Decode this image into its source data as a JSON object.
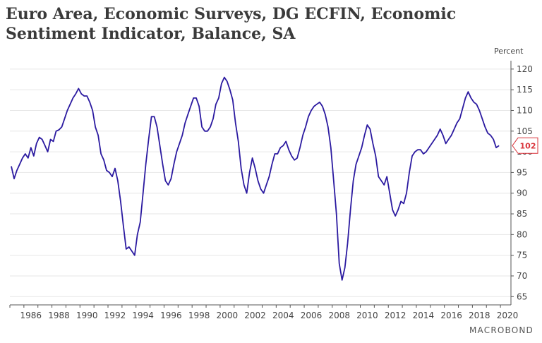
{
  "title_line1": "Euro Area, Economic Surveys, DG ECFIN, Economic",
  "title_line2": "Sentiment Indicator, Balance, SA",
  "brand": "MACROBOND",
  "chart_data": {
    "type": "line",
    "title": "Euro Area, Economic Surveys, DG ECFIN, Economic Sentiment Indicator, Balance, SA",
    "ylabel": "Percent",
    "xlabel": "",
    "xlim": [
      1985.0,
      2020.75
    ],
    "ylim": [
      63,
      121
    ],
    "grid": true,
    "y_axis_side": "right",
    "x_ticks": [
      1986,
      1988,
      1990,
      1992,
      1994,
      1996,
      1998,
      2000,
      2002,
      2004,
      2006,
      2008,
      2010,
      2012,
      2014,
      2016,
      2018,
      2020
    ],
    "y_ticks": [
      65,
      70,
      75,
      80,
      85,
      90,
      95,
      100,
      105,
      110,
      115,
      120
    ],
    "last_value_label": "102",
    "colors": {
      "line": "#2b1aa0",
      "last_value": "#d9343b",
      "grid": "#e6e6e6",
      "axis": "#555555"
    },
    "series": [
      {
        "x": [
          1985.1,
          1985.3,
          1985.5,
          1985.7,
          1985.9,
          1986.1,
          1986.3,
          1986.5,
          1986.7,
          1986.9,
          1987.1,
          1987.3,
          1987.5,
          1987.7,
          1987.9,
          1988.1,
          1988.3,
          1988.5,
          1988.7,
          1988.9,
          1989.1,
          1989.3,
          1989.5,
          1989.7,
          1989.9,
          1990.1,
          1990.3,
          1990.5,
          1990.7,
          1990.9,
          1991.1,
          1991.3,
          1991.5,
          1991.7,
          1991.9,
          1992.1,
          1992.3,
          1992.5,
          1992.7,
          1992.9,
          1993.1,
          1993.3,
          1993.5,
          1993.7,
          1993.9,
          1994.1,
          1994.3,
          1994.5,
          1994.7,
          1994.9,
          1995.1,
          1995.3,
          1995.5,
          1995.7,
          1995.9,
          1996.1,
          1996.3,
          1996.5,
          1996.7,
          1996.9,
          1997.1,
          1997.3,
          1997.5,
          1997.7,
          1997.9,
          1998.1,
          1998.3,
          1998.5,
          1998.7,
          1998.9,
          1999.1,
          1999.3,
          1999.5,
          1999.7,
          1999.9,
          2000.1,
          2000.3,
          2000.5,
          2000.7,
          2000.9,
          2001.1,
          2001.3,
          2001.5,
          2001.7,
          2001.9,
          2002.1,
          2002.3,
          2002.5,
          2002.7,
          2002.9,
          2003.1,
          2003.3,
          2003.5,
          2003.7,
          2003.9,
          2004.1,
          2004.3,
          2004.5,
          2004.7,
          2004.9,
          2005.1,
          2005.3,
          2005.5,
          2005.7,
          2005.9,
          2006.1,
          2006.3,
          2006.5,
          2006.7,
          2006.9,
          2007.1,
          2007.3,
          2007.5,
          2007.7,
          2007.9,
          2008.1,
          2008.3,
          2008.5,
          2008.7,
          2008.9,
          2009.1,
          2009.3,
          2009.5,
          2009.7,
          2009.9,
          2010.1,
          2010.3,
          2010.5,
          2010.7,
          2010.9,
          2011.1,
          2011.3,
          2011.5,
          2011.7,
          2011.9,
          2012.1,
          2012.3,
          2012.5,
          2012.7,
          2012.9,
          2013.1,
          2013.3,
          2013.5,
          2013.7,
          2013.9,
          2014.1,
          2014.3,
          2014.5,
          2014.7,
          2014.9,
          2015.1,
          2015.3,
          2015.5,
          2015.7,
          2015.9,
          2016.1,
          2016.3,
          2016.5,
          2016.7,
          2016.9,
          2017.1,
          2017.3,
          2017.5,
          2017.7,
          2017.9,
          2018.1,
          2018.3,
          2018.5,
          2018.7,
          2018.9,
          2019.1,
          2019.3,
          2019.5,
          2019.7,
          2019.9
        ],
        "y": [
          96.5,
          93.5,
          95.5,
          97,
          98.5,
          99.5,
          98.5,
          101,
          99,
          102,
          103.5,
          103,
          101.5,
          100,
          103,
          102.5,
          105,
          105.3,
          106,
          108,
          110,
          111.5,
          113,
          114,
          115.3,
          114,
          113.5,
          113.5,
          112,
          110,
          106,
          104,
          99.5,
          98,
          95.5,
          95,
          94,
          96,
          93,
          88,
          82,
          76.5,
          77,
          76,
          75,
          80,
          83,
          90,
          97,
          103,
          108.5,
          108.5,
          106,
          101.5,
          97,
          93,
          92,
          93.5,
          97,
          100,
          102,
          104,
          107,
          109,
          111,
          113,
          113,
          111,
          106,
          105,
          105,
          106,
          108,
          111.5,
          113,
          116.5,
          118,
          117,
          115,
          112.5,
          107,
          102.5,
          96,
          92,
          90,
          95,
          98.5,
          96,
          93,
          91,
          90,
          92,
          94,
          97,
          99.5,
          99.5,
          101,
          101.5,
          102.5,
          100.5,
          99,
          98,
          98.5,
          101,
          104,
          106,
          108.5,
          110,
          111,
          111.5,
          112,
          111,
          109,
          106,
          101,
          93,
          85,
          73,
          69,
          72,
          78,
          86,
          93,
          97,
          99,
          101,
          104,
          106.5,
          105.5,
          102,
          99,
          94,
          93,
          92,
          94,
          90,
          86,
          84.5,
          86,
          88,
          87.5,
          90,
          95,
          99,
          100,
          100.5,
          100.5,
          99.5,
          100,
          101,
          102,
          103,
          104,
          105.5,
          104,
          102,
          103,
          104,
          105.5,
          107,
          108,
          110.5,
          113,
          114.5,
          113,
          112,
          111.5,
          110,
          108,
          106,
          104.5,
          104,
          103,
          101,
          101.5
        ]
      }
    ]
  }
}
